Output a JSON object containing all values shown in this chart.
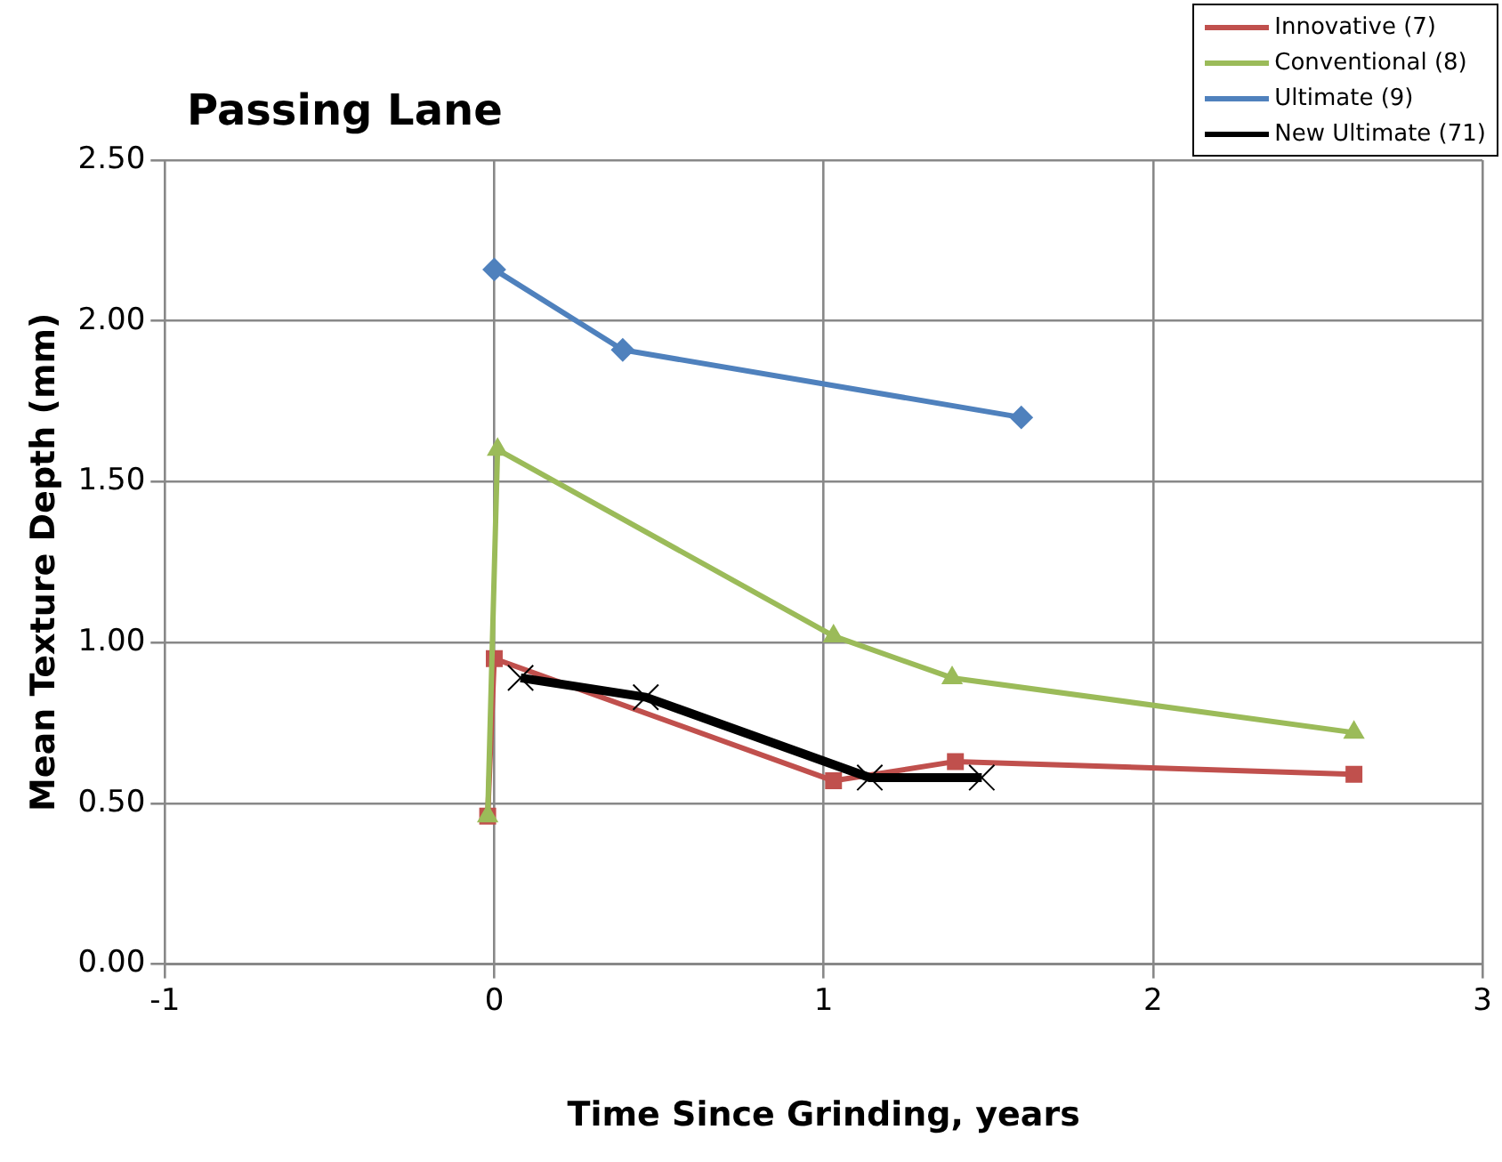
{
  "chart_data": {
    "type": "line",
    "title": "Passing Lane",
    "xlabel": "Time Since Grinding, years",
    "ylabel": "Mean Texture Depth (mm)",
    "xlim": [
      -1,
      3
    ],
    "xticks": [
      -1,
      0,
      1,
      2,
      3
    ],
    "ylim": [
      0,
      2.5
    ],
    "yticks": [
      {
        "value": 0,
        "label": "0.00"
      },
      {
        "value": 0.5,
        "label": "0.50"
      },
      {
        "value": 1,
        "label": "1.00"
      },
      {
        "value": 1.5,
        "label": "1.50"
      },
      {
        "value": 2,
        "label": "2.00"
      },
      {
        "value": 2.5,
        "label": "2.50"
      }
    ],
    "grid": true,
    "legend": "top right",
    "series": [
      {
        "name": "Innovative (7)",
        "color": "#c0504d",
        "marker": "square",
        "x": [
          -0.02,
          0,
          1.03,
          1.4,
          2.61
        ],
        "values": [
          0.46,
          0.95,
          0.57,
          0.63,
          0.59
        ]
      },
      {
        "name": "Conventional (8)",
        "color": "#9bbb59",
        "marker": "triangle",
        "x": [
          -0.02,
          0.01,
          1.03,
          1.39,
          2.61
        ],
        "values": [
          0.46,
          1.6,
          1.02,
          0.89,
          0.72
        ]
      },
      {
        "name": "Ultimate (9)",
        "color": "#4f81bd",
        "marker": "diamond",
        "x": [
          0,
          0.39,
          1.6
        ],
        "values": [
          2.16,
          1.91,
          1.7
        ]
      },
      {
        "name": "New Ultimate (71)",
        "color": "#000000",
        "marker": "cross",
        "x": [
          0.08,
          0.46,
          1.14,
          1.48
        ],
        "values": [
          0.89,
          0.83,
          0.58,
          0.58
        ]
      }
    ]
  }
}
